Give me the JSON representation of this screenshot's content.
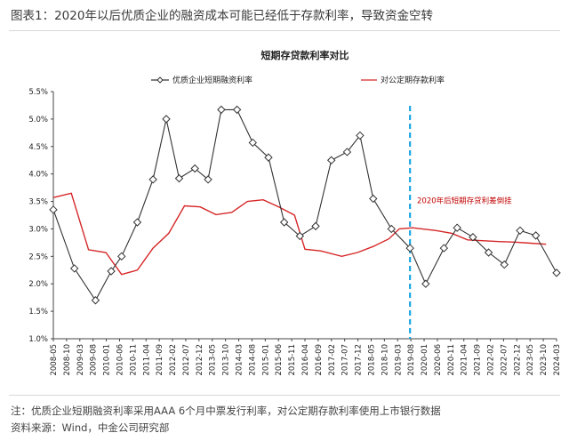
{
  "header": {
    "title": "图表1：2020年以后优质企业的融资成本可能已经低于存款利率，导致资金空转"
  },
  "footnote": {
    "note": "注：优质企业短期融资利率采用AAA 6个月中票发行利率，对公定期存款利率使用上市银行数据",
    "source": "资料来源：Wind，中金公司研究部"
  },
  "colors": {
    "series1": "#333333",
    "series2": "#d62728",
    "annotation": "#c00000",
    "divider": "#1ba7e0"
  },
  "chart_data": {
    "type": "line",
    "title": "短期存贷款利率对比",
    "xlabel": "",
    "ylabel": "",
    "ylim": [
      1.0,
      5.5
    ],
    "yticks": [
      "1.0%",
      "1.5%",
      "2.0%",
      "2.5%",
      "3.0%",
      "3.5%",
      "4.0%",
      "4.5%",
      "5.0%",
      "5.5%"
    ],
    "ytick_values": [
      1.0,
      1.5,
      2.0,
      2.5,
      3.0,
      3.5,
      4.0,
      4.5,
      5.0,
      5.5
    ],
    "categories": [
      "2008-05",
      "2008-10",
      "2009-03",
      "2009-08",
      "2010-01",
      "2010-06",
      "2010-11",
      "2011-04",
      "2011-09",
      "2012-02",
      "2012-07",
      "2012-12",
      "2013-05",
      "2013-10",
      "2014-03",
      "2014-08",
      "2015-01",
      "2015-06",
      "2015-11",
      "2016-04",
      "2016-09",
      "2017-02",
      "2017-07",
      "2017-12",
      "2018-05",
      "2018-10",
      "2019-03",
      "2019-08",
      "2020-01",
      "2020-06",
      "2020-11",
      "2021-04",
      "2021-09",
      "2022-02",
      "2022-07",
      "2022-12",
      "2023-05",
      "2023-10",
      "2024-03"
    ],
    "x_range": [
      2008.33,
      2024.33
    ],
    "series": [
      {
        "name": "优质企业短期融资利率",
        "marker": "diamond",
        "points": [
          [
            2008.33,
            3.35
          ],
          [
            2009.0,
            2.28
          ],
          [
            2009.67,
            1.7
          ],
          [
            2010.17,
            2.23
          ],
          [
            2010.5,
            2.5
          ],
          [
            2011.0,
            3.12
          ],
          [
            2011.5,
            3.9
          ],
          [
            2011.92,
            5.0
          ],
          [
            2012.33,
            3.92
          ],
          [
            2012.83,
            4.1
          ],
          [
            2013.25,
            3.9
          ],
          [
            2013.67,
            5.17
          ],
          [
            2014.17,
            5.17
          ],
          [
            2014.67,
            4.57
          ],
          [
            2015.17,
            4.3
          ],
          [
            2015.67,
            3.12
          ],
          [
            2016.17,
            2.87
          ],
          [
            2016.67,
            3.05
          ],
          [
            2017.17,
            4.25
          ],
          [
            2017.67,
            4.4
          ],
          [
            2018.08,
            4.7
          ],
          [
            2018.5,
            3.55
          ],
          [
            2019.08,
            3.0
          ],
          [
            2019.67,
            2.65
          ],
          [
            2020.17,
            2.0
          ],
          [
            2020.75,
            2.65
          ],
          [
            2021.17,
            3.02
          ],
          [
            2021.67,
            2.85
          ],
          [
            2022.17,
            2.57
          ],
          [
            2022.67,
            2.35
          ],
          [
            2023.17,
            2.97
          ],
          [
            2023.67,
            2.88
          ],
          [
            2024.33,
            2.2
          ]
        ]
      },
      {
        "name": "对公定期存款利率",
        "marker": "none",
        "points": [
          [
            2008.33,
            3.57
          ],
          [
            2008.9,
            3.65
          ],
          [
            2009.45,
            2.62
          ],
          [
            2010.0,
            2.57
          ],
          [
            2010.5,
            2.17
          ],
          [
            2011.0,
            2.25
          ],
          [
            2011.5,
            2.65
          ],
          [
            2012.0,
            2.92
          ],
          [
            2012.5,
            3.42
          ],
          [
            2013.0,
            3.4
          ],
          [
            2013.5,
            3.26
          ],
          [
            2014.0,
            3.3
          ],
          [
            2014.5,
            3.5
          ],
          [
            2015.0,
            3.53
          ],
          [
            2015.5,
            3.4
          ],
          [
            2016.0,
            3.25
          ],
          [
            2016.33,
            2.63
          ],
          [
            2016.83,
            2.6
          ],
          [
            2017.5,
            2.5
          ],
          [
            2018.0,
            2.57
          ],
          [
            2018.5,
            2.68
          ],
          [
            2019.0,
            2.82
          ],
          [
            2019.33,
            3.0
          ],
          [
            2019.75,
            3.02
          ],
          [
            2020.5,
            2.97
          ],
          [
            2021.0,
            2.92
          ],
          [
            2021.5,
            2.8
          ],
          [
            2022.5,
            2.77
          ],
          [
            2023.0,
            2.76
          ],
          [
            2023.5,
            2.74
          ],
          [
            2024.0,
            2.72
          ]
        ]
      }
    ],
    "divider_x": 2019.67,
    "annotation": {
      "text": "2020年后短期存贷利差倒挂",
      "x": 2021.4,
      "y": 3.47
    },
    "legend": {
      "placement": "top",
      "entries": [
        "优质企业短期融资利率",
        "对公定期存款利率"
      ]
    },
    "grid": false
  }
}
